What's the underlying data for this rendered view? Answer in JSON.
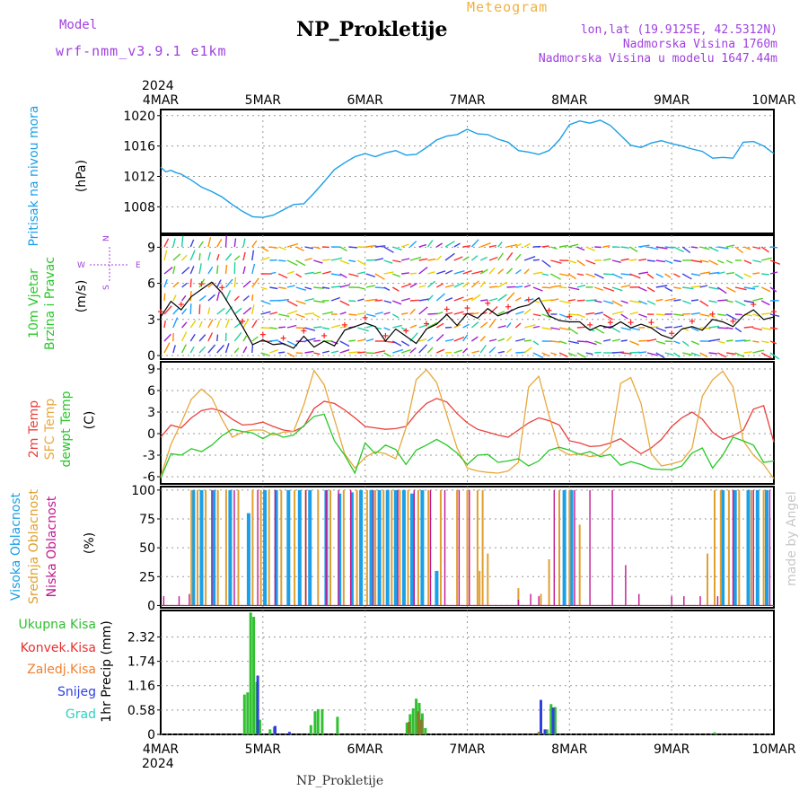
{
  "header": {
    "title": "NP_Prokletije",
    "meteogram": "Meteogram",
    "model_label": "Model",
    "model_value": "wrf-nmm_v3.9.1  e1km",
    "lonlat": "lon,lat (19.9125E, 42.5312N)",
    "elevation": "Nadmorska Visina 1760m",
    "model_elevation": "Nadmorska Visina u modelu 1647.44m",
    "year_top": "2024",
    "year_bottom": "2024",
    "footer": "NP_Prokletije",
    "watermark": "made by Angel"
  },
  "colors": {
    "pressure": "#1a9fe8",
    "temp2m": "#e8413c",
    "sfc": "#e8a83c",
    "dewpt": "#28c828",
    "high_cloud": "#1aa0e8",
    "mid_cloud": "#e0a030",
    "low_cloud": "#c01890",
    "total_precip": "#30c030",
    "conv_precip": "#e83030",
    "frozen_precip": "#f08030",
    "snow": "#3040e0",
    "graupel": "#30d0c0",
    "title_purple": "#a040e0"
  },
  "chart_data": [
    {
      "type": "line",
      "panel": "pressure",
      "ylabel": [
        "Pritisak na nivou mora",
        "(hPa)"
      ],
      "x_ticks": [
        "4MAR",
        "5MAR",
        "6MAR",
        "7MAR",
        "8MAR",
        "9MAR",
        "10MAR"
      ],
      "ylim": [
        1004.5,
        1020.8
      ],
      "yticks": [
        1008,
        1012,
        1016,
        1020
      ],
      "grid": true,
      "series": [
        {
          "x": [
            0,
            0.05,
            0.1,
            0.15,
            0.2,
            0.3,
            0.4,
            0.5,
            0.6,
            0.7,
            0.8,
            0.9,
            1.0,
            1.1,
            1.2,
            1.3,
            1.4,
            1.5,
            1.6,
            1.7,
            1.8,
            1.9,
            2.0,
            2.1,
            2.2,
            2.3,
            2.4,
            2.5,
            2.6,
            2.7,
            2.8,
            2.9,
            3.0,
            3.1,
            3.2,
            3.3,
            3.4,
            3.5,
            3.6,
            3.7,
            3.8,
            3.9,
            4.0,
            4.1,
            4.2,
            4.3,
            4.4,
            4.5,
            4.6,
            4.7,
            4.8,
            4.9,
            5.0,
            5.1,
            5.2,
            5.3,
            5.4,
            5.5,
            5.6,
            5.7,
            5.8,
            5.9,
            6.0
          ],
          "values": [
            1013.2,
            1012.6,
            1012.8,
            1012.5,
            1012.3,
            1011.5,
            1010.6,
            1010.0,
            1009.3,
            1008.3,
            1007.4,
            1006.7,
            1006.6,
            1006.9,
            1007.6,
            1008.3,
            1008.4,
            1009.8,
            1011.3,
            1012.9,
            1013.8,
            1014.6,
            1015.0,
            1014.6,
            1015.1,
            1015.4,
            1014.8,
            1014.9,
            1015.8,
            1016.8,
            1017.3,
            1017.5,
            1018.2,
            1017.6,
            1017.5,
            1016.9,
            1016.5,
            1015.4,
            1015.2,
            1014.9,
            1015.4,
            1016.8,
            1018.8,
            1019.3,
            1019.0,
            1019.4,
            1018.7,
            1017.4,
            1016.1,
            1015.8,
            1016.4,
            1016.7,
            1016.3,
            1016.0,
            1015.6,
            1015.3,
            1014.4,
            1014.5,
            1014.4,
            1016.5,
            1016.6,
            1016.0,
            1015.0
          ]
        }
      ]
    },
    {
      "type": "line",
      "panel": "wind",
      "ylabel": [
        "10m Vjetar",
        "Brzina i Pravac",
        "(m/s)"
      ],
      "compass": [
        "N",
        "S",
        "E",
        "W"
      ],
      "ylim": [
        -0.3,
        10
      ],
      "yticks": [
        0,
        3,
        6,
        9
      ],
      "grid": true,
      "series": [
        {
          "name": "wind speed",
          "x": [
            0,
            0.1,
            0.2,
            0.3,
            0.4,
            0.5,
            0.6,
            0.7,
            0.8,
            0.9,
            1.0,
            1.1,
            1.2,
            1.3,
            1.4,
            1.5,
            1.6,
            1.7,
            1.8,
            1.9,
            2.0,
            2.1,
            2.2,
            2.3,
            2.4,
            2.5,
            2.6,
            2.7,
            2.8,
            2.9,
            3.0,
            3.1,
            3.2,
            3.3,
            3.4,
            3.5,
            3.6,
            3.7,
            3.8,
            3.9,
            4.0,
            4.1,
            4.2,
            4.3,
            4.4,
            4.5,
            4.6,
            4.7,
            4.8,
            4.9,
            5.0,
            5.1,
            5.2,
            5.3,
            5.4,
            5.5,
            5.6,
            5.7,
            5.8,
            5.9,
            6.0
          ],
          "values": [
            3.2,
            4.5,
            3.8,
            4.9,
            5.5,
            6.1,
            5.2,
            3.8,
            2.4,
            0.9,
            1.3,
            0.9,
            1.0,
            0.6,
            1.6,
            0.7,
            1.2,
            0.8,
            2.1,
            2.4,
            2.7,
            2.4,
            1.2,
            2.2,
            1.6,
            1.0,
            2.2,
            2.6,
            3.4,
            2.5,
            3.5,
            3.1,
            3.9,
            3.3,
            3.6,
            4.0,
            4.2,
            4.8,
            3.3,
            2.9,
            2.8,
            2.8,
            2.1,
            2.5,
            2.3,
            2.8,
            2.3,
            2.6,
            2.3,
            1.7,
            1.4,
            2.2,
            2.4,
            2.1,
            3.0,
            2.8,
            2.4,
            3.3,
            3.8,
            3.0,
            3.2
          ]
        }
      ]
    },
    {
      "type": "line",
      "panel": "temperature",
      "ylabel": [
        "2m Temp",
        "SFC Temp",
        "dewpt Temp",
        "(C)"
      ],
      "ylim": [
        -7,
        10
      ],
      "yticks": [
        -6,
        -3,
        0,
        3,
        6,
        9
      ],
      "grid": true,
      "series": [
        {
          "name": "2m Temp",
          "x": [
            0,
            0.1,
            0.2,
            0.3,
            0.4,
            0.5,
            0.6,
            0.7,
            0.8,
            0.9,
            1.0,
            1.1,
            1.2,
            1.3,
            1.4,
            1.5,
            1.6,
            1.7,
            1.8,
            1.9,
            2.0,
            2.1,
            2.2,
            2.3,
            2.4,
            2.5,
            2.6,
            2.7,
            2.8,
            2.9,
            3.0,
            3.1,
            3.2,
            3.3,
            3.4,
            3.5,
            3.6,
            3.7,
            3.8,
            3.9,
            4.0,
            4.1,
            4.2,
            4.3,
            4.4,
            4.5,
            4.6,
            4.7,
            4.8,
            4.9,
            5.0,
            5.1,
            5.2,
            5.3,
            5.4,
            5.5,
            5.6,
            5.7,
            5.8,
            5.9,
            6.0
          ],
          "values": [
            -0.5,
            1.2,
            0.8,
            2.2,
            3.2,
            3.5,
            3.1,
            2.0,
            1.2,
            1.3,
            1.6,
            1.0,
            0.5,
            0.3,
            1.0,
            3.5,
            4.5,
            4.2,
            3.3,
            2.2,
            1.0,
            0.8,
            0.6,
            0.7,
            1.0,
            2.8,
            4.2,
            4.9,
            4.4,
            2.8,
            1.5,
            0.6,
            0.2,
            -0.2,
            -0.5,
            0.5,
            1.5,
            2.2,
            1.8,
            1.2,
            -1.0,
            -1.3,
            -1.8,
            -1.7,
            -1.3,
            -0.7,
            -1.8,
            -2.8,
            -2.0,
            -0.8,
            1.0,
            2.2,
            3.0,
            2.0,
            0.2,
            -0.8,
            -0.3,
            0.5,
            3.4,
            3.9,
            -1.2
          ]
        },
        {
          "name": "SFC Temp",
          "x": [
            0,
            0.1,
            0.2,
            0.3,
            0.4,
            0.5,
            0.6,
            0.7,
            0.8,
            0.9,
            1.0,
            1.1,
            1.2,
            1.3,
            1.4,
            1.5,
            1.6,
            1.7,
            1.8,
            1.9,
            2.0,
            2.1,
            2.2,
            2.3,
            2.4,
            2.5,
            2.6,
            2.7,
            2.8,
            2.9,
            3.0,
            3.1,
            3.2,
            3.3,
            3.4,
            3.5,
            3.6,
            3.7,
            3.8,
            3.9,
            4.0,
            4.1,
            4.2,
            4.3,
            4.4,
            4.5,
            4.6,
            4.7,
            4.8,
            4.9,
            5.0,
            5.1,
            5.2,
            5.3,
            5.4,
            5.5,
            5.6,
            5.7,
            5.8,
            5.9,
            6.0
          ],
          "values": [
            -6.0,
            -1.5,
            1.5,
            4.8,
            6.2,
            5.0,
            2.0,
            -0.5,
            0.2,
            0.5,
            0.5,
            -0.2,
            0.2,
            0.3,
            4.0,
            8.8,
            6.8,
            2.0,
            -2.8,
            -4.8,
            -3.3,
            -2.5,
            -2.8,
            -3.5,
            0.8,
            7.5,
            8.9,
            7.1,
            2.6,
            -2.0,
            -4.8,
            -5.2,
            -5.4,
            -5.5,
            -5.2,
            -4.0,
            6.5,
            8.0,
            2.5,
            -2.2,
            -3.0,
            -2.8,
            -3.2,
            -3.0,
            -1.8,
            7.0,
            7.8,
            4.2,
            -2.8,
            -4.5,
            -4.2,
            -3.8,
            -2.0,
            5.2,
            7.5,
            8.7,
            6.5,
            -1.0,
            -3.0,
            -4.3,
            -6.3
          ]
        },
        {
          "name": "dewpt Temp",
          "x": [
            0,
            0.1,
            0.2,
            0.3,
            0.4,
            0.5,
            0.6,
            0.7,
            0.8,
            0.9,
            1.0,
            1.1,
            1.2,
            1.3,
            1.4,
            1.5,
            1.6,
            1.7,
            1.8,
            1.9,
            2.0,
            2.1,
            2.2,
            2.3,
            2.4,
            2.5,
            2.6,
            2.7,
            2.8,
            2.9,
            3.0,
            3.1,
            3.2,
            3.3,
            3.4,
            3.5,
            3.6,
            3.7,
            3.8,
            3.9,
            4.0,
            4.1,
            4.2,
            4.3,
            4.4,
            4.5,
            4.6,
            4.7,
            4.8,
            4.9,
            5.0,
            5.1,
            5.2,
            5.3,
            5.4,
            5.5,
            5.6,
            5.7,
            5.8,
            5.9,
            6.0
          ],
          "values": [
            -6.2,
            -2.8,
            -3.0,
            -2.1,
            -2.5,
            -1.6,
            -0.3,
            0.6,
            0.3,
            0.1,
            -0.7,
            0.1,
            -0.5,
            -0.2,
            1.1,
            2.4,
            2.7,
            -1.0,
            -3.0,
            -5.5,
            -1.3,
            -2.8,
            -1.6,
            -2.2,
            -4.3,
            -2.3,
            -1.6,
            -0.8,
            -1.6,
            -2.7,
            -4.3,
            -3.0,
            -2.9,
            -4.0,
            -3.8,
            -3.5,
            -4.5,
            -3.8,
            -2.3,
            -1.9,
            -2.3,
            -2.9,
            -2.5,
            -3.2,
            -2.9,
            -4.4,
            -3.9,
            -4.3,
            -4.9,
            -5.0,
            -5.0,
            -4.5,
            -2.7,
            -2.0,
            -4.8,
            -3.0,
            -0.5,
            -1.0,
            -1.6,
            -4.0,
            -3.8
          ]
        }
      ]
    },
    {
      "type": "bar",
      "panel": "clouds",
      "ylabel": [
        "Visoka Oblacnost",
        "Srednja Oblacnost",
        "Niska Oblacnost",
        "(%)"
      ],
      "ylim": [
        -2,
        103
      ],
      "yticks": [
        0,
        25,
        50,
        75,
        100
      ],
      "grid": true,
      "series": [
        {
          "name": "Visoka Oblacnost",
          "x": [
            0.32,
            0.4,
            0.52,
            0.68,
            0.86,
            1.02,
            1.13,
            1.25,
            1.36,
            1.46,
            1.62,
            1.75,
            1.87,
            1.96,
            2.06,
            2.14,
            2.22,
            2.3,
            2.38,
            2.46,
            2.56,
            2.7,
            3.05,
            3.95,
            4.02,
            5.5,
            5.62,
            5.75,
            5.84,
            5.93
          ],
          "values": [
            100,
            100,
            100,
            100,
            80,
            100,
            100,
            100,
            100,
            100,
            100,
            97,
            98,
            100,
            100,
            100,
            100,
            100,
            100,
            97,
            100,
            30,
            0,
            100,
            100,
            100,
            100,
            100,
            100,
            100
          ]
        },
        {
          "name": "Srednja Oblacnost",
          "x": [
            0.3,
            0.36,
            0.44,
            0.56,
            0.64,
            0.76,
            0.9,
            0.98,
            1.06,
            1.18,
            1.31,
            1.42,
            1.54,
            1.66,
            1.79,
            1.92,
            2.02,
            2.1,
            2.18,
            2.26,
            2.34,
            2.42,
            2.52,
            2.62,
            2.74,
            2.9,
            3.0,
            3.1,
            3.12,
            3.15,
            3.2,
            3.5,
            3.72,
            3.8,
            3.9,
            4.0,
            4.1,
            5.35,
            5.42,
            5.48,
            5.56,
            5.66,
            5.78,
            5.9
          ],
          "values": [
            100,
            100,
            100,
            100,
            100,
            100,
            100,
            100,
            100,
            100,
            100,
            100,
            100,
            100,
            100,
            100,
            100,
            100,
            100,
            100,
            100,
            100,
            100,
            100,
            100,
            100,
            100,
            100,
            30,
            100,
            45,
            15,
            10,
            40,
            100,
            100,
            70,
            45,
            100,
            100,
            100,
            100,
            100,
            100
          ]
        },
        {
          "name": "Niska Oblacnost",
          "x": [
            0.03,
            0.18,
            0.28,
            0.5,
            0.72,
            0.95,
            1.12,
            1.42,
            1.62,
            1.74,
            1.86,
            2.08,
            2.32,
            2.48,
            2.64,
            2.78,
            2.92,
            3.02,
            3.5,
            3.62,
            3.7,
            3.85,
            4.05,
            4.2,
            4.42,
            4.55,
            4.68,
            5.0,
            5.12,
            5.28,
            5.45,
            5.6,
            5.8,
            5.96
          ],
          "values": [
            8,
            8,
            10,
            100,
            100,
            100,
            100,
            100,
            100,
            100,
            100,
            100,
            100,
            100,
            100,
            100,
            100,
            100,
            5,
            10,
            8,
            100,
            100,
            100,
            100,
            35,
            10,
            8,
            8,
            8,
            8,
            100,
            100,
            100
          ]
        }
      ]
    },
    {
      "type": "bar",
      "panel": "precipitation",
      "ylabel": [
        "1hr Precip (mm)"
      ],
      "legend": [
        "Ukupna Kisa",
        "Konvek.Kisa",
        "Zaledj.Kisa",
        "Snijeg",
        "Grad"
      ],
      "ylim": [
        0,
        2.95
      ],
      "yticks": [
        0,
        0.58,
        1.16,
        1.74,
        2.32
      ],
      "grid": true,
      "series": [
        {
          "name": "Ukupna Kisa",
          "x": [
            0.82,
            0.85,
            0.88,
            0.91,
            0.94,
            0.97,
            1.07,
            1.11,
            1.47,
            1.51,
            1.54,
            1.58,
            1.73,
            2.41,
            2.44,
            2.47,
            2.5,
            2.53,
            2.56,
            2.59,
            3.78,
            3.82,
            3.86,
            5.42
          ],
          "values": [
            0.95,
            1.0,
            2.9,
            2.8,
            1.25,
            0.35,
            0.12,
            0.18,
            0.22,
            0.55,
            0.6,
            0.6,
            0.42,
            0.28,
            0.48,
            0.62,
            0.85,
            0.75,
            0.5,
            0.15,
            0.12,
            0.72,
            0.65,
            0.05
          ]
        },
        {
          "name": "Snijeg",
          "x": [
            0.95,
            1.12,
            1.26,
            3.72,
            3.76,
            3.84
          ],
          "values": [
            1.4,
            0.2,
            0.06,
            0.82,
            0.12,
            0.64
          ]
        },
        {
          "name": "Zaledj.Kisa",
          "x": [
            2.43,
            2.52,
            2.55,
            3.7
          ],
          "values": [
            0.3,
            0.55,
            0.35,
            0.06
          ]
        }
      ]
    }
  ]
}
